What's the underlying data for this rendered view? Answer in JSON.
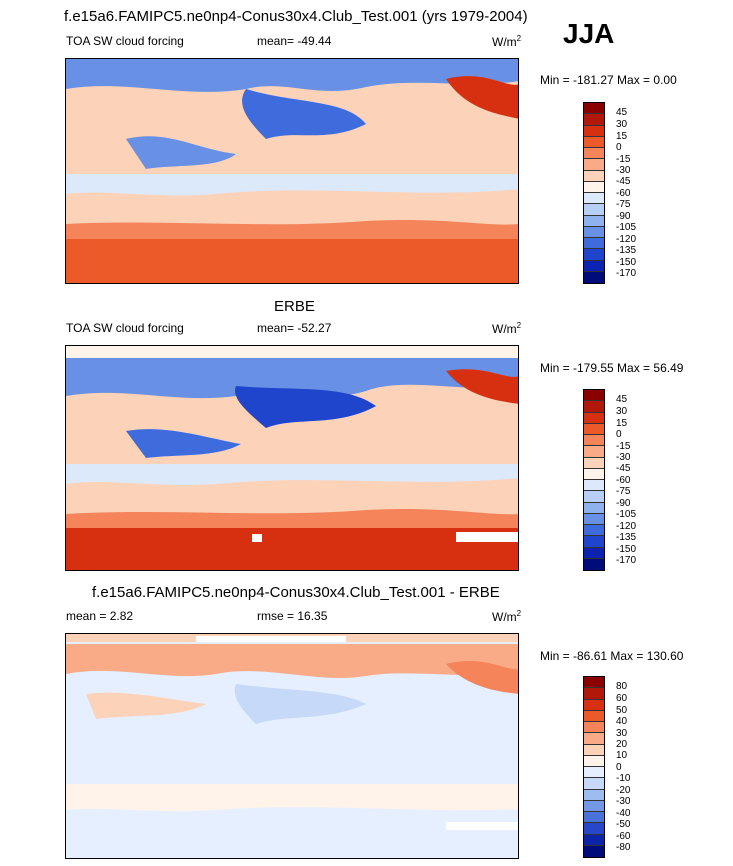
{
  "title": "f.e15a6.FAMIPC5.ne0np4-Conus30x4.Club_Test.001 (yrs 1979-2004)",
  "season": "JJA",
  "panels": [
    {
      "header_title": "",
      "left_label": "TOA SW cloud forcing",
      "center_label": "mean= -49.44",
      "units": "W/m",
      "units_sup": "2",
      "minmax": "Min = -181.27 Max =   0.00",
      "colorbar_labels": [
        "45",
        "30",
        "15",
        "0",
        "-15",
        "-30",
        "-45",
        "-60",
        "-75",
        "-90",
        "-105",
        "-120",
        "-135",
        "-150",
        "-170"
      ]
    },
    {
      "header_title": "ERBE",
      "left_label": "TOA SW cloud forcing",
      "center_label": "mean= -52.27",
      "units": "W/m",
      "units_sup": "2",
      "minmax": "Min = -179.55 Max =  56.49",
      "colorbar_labels": [
        "45",
        "30",
        "15",
        "0",
        "-15",
        "-30",
        "-45",
        "-60",
        "-75",
        "-90",
        "-105",
        "-120",
        "-135",
        "-150",
        "-170"
      ]
    },
    {
      "header_title": "f.e15a6.FAMIPC5.ne0np4-Conus30x4.Club_Test.001 - ERBE",
      "left_label": "mean =   2.82",
      "center_label": "rmse =  16.35",
      "units": "W/m",
      "units_sup": "2",
      "minmax": "Min = -86.61 Max = 130.60",
      "colorbar_labels": [
        "80",
        "60",
        "50",
        "40",
        "30",
        "20",
        "10",
        "0",
        "-10",
        "-20",
        "-30",
        "-40",
        "-50",
        "-60",
        "-80"
      ]
    }
  ],
  "colors": {
    "cbar_field": [
      "#8b0000",
      "#b2180a",
      "#d73010",
      "#ec5a2a",
      "#f5845a",
      "#f9ab88",
      "#fcd2b8",
      "#fff3ea",
      "#dce9fb",
      "#b7cef5",
      "#8fb1ee",
      "#6890e4",
      "#3f6cdd",
      "#1f45cc",
      "#0b23b0",
      "#000c7a"
    ],
    "cbar_diff": [
      "#8b0000",
      "#b2180a",
      "#d73010",
      "#ec5a2a",
      "#f5845a",
      "#f9ab88",
      "#fcd2b8",
      "#fff3ea",
      "#e6efff",
      "#c6d9f8",
      "#9dbcf0",
      "#7398e6",
      "#4a73da",
      "#2648c8",
      "#0d24a8",
      "#000c7a"
    ]
  }
}
